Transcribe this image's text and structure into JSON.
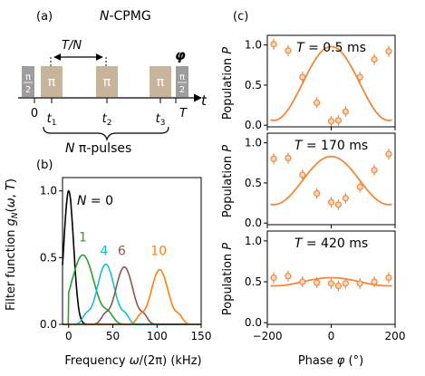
{
  "panel_a": {
    "panel_label": "(a)",
    "title_italic": "N",
    "title_rest": "-CPMG",
    "spacing_label": "T/N",
    "phi_label": "φ",
    "time_axis_label": "t",
    "pulse_symbol": "π",
    "half_pi_top": "π",
    "half_pi_bottom": "2",
    "time_ticks": [
      "0",
      "t1",
      "t2",
      "t3",
      "T"
    ],
    "pulse_caption_italic": "N",
    "pulse_caption_rest": " π-pulses",
    "colors": {
      "pulse_box": "#c8b49a",
      "half_pi_box": "#9d9d9d"
    }
  },
  "panel_b": {
    "panel_label": "(b)",
    "ylabel": "Filter function g_N(ω, T)",
    "xlabel": "Frequency ω/(2π) (kHz)",
    "n0_label": "N = 0"
  },
  "panel_c": {
    "panel_label": "(c)",
    "ylabel": "Population P",
    "xlabel": "Phase φ (°)"
  },
  "chart_data": [
    {
      "type": "line",
      "panel": "b",
      "xlabel": "Frequency ω/(2π) (kHz)",
      "ylabel": "Filter function g_N(ω, T)",
      "xlim": [
        -7,
        150
      ],
      "ylim": [
        0,
        1.1
      ],
      "xticks": [
        0,
        50,
        100,
        150
      ],
      "yticks": [
        0.0,
        0.5,
        1.0
      ],
      "series": [
        {
          "name": "0",
          "color": "#000000",
          "peak_khz": 0,
          "peak_height": 1.0
        },
        {
          "name": "1",
          "color": "#2ca02c",
          "peak_khz": 16,
          "peak_height": 0.52
        },
        {
          "name": "4",
          "color": "#17becf",
          "peak_khz": 42,
          "peak_height": 0.45
        },
        {
          "name": "6",
          "color": "#8c564b",
          "peak_khz": 63,
          "peak_height": 0.43
        },
        {
          "name": "10",
          "color": "#ff7f0e",
          "peak_khz": 103,
          "peak_height": 0.41
        }
      ]
    },
    {
      "type": "scatter",
      "panel": "c",
      "title": "T = 0.5 ms",
      "xlabel": "Phase φ (°)",
      "ylabel": "Population P",
      "xlim": [
        -200,
        200
      ],
      "ylim": [
        -0.02,
        1.12
      ],
      "yticks": [
        0.0,
        0.5,
        1.0
      ],
      "color": "#f0883e",
      "x": [
        -180,
        -135,
        -90,
        -45,
        0,
        22.5,
        45,
        90,
        135,
        180
      ],
      "y": [
        1.01,
        0.93,
        0.6,
        0.28,
        0.05,
        0.06,
        0.17,
        0.6,
        0.82,
        0.92
      ],
      "fit": {
        "mean": 0.52,
        "amplitude": 0.46
      }
    },
    {
      "type": "scatter",
      "panel": "c",
      "title": "T = 170 ms",
      "xlabel": "Phase φ (°)",
      "ylabel": "Population P",
      "xlim": [
        -200,
        200
      ],
      "ylim": [
        -0.02,
        1.12
      ],
      "yticks": [
        0.0,
        0.5,
        1.0
      ],
      "color": "#f0883e",
      "x": [
        -180,
        -135,
        -90,
        -45,
        0,
        22.5,
        45,
        90,
        135,
        180
      ],
      "y": [
        0.8,
        0.81,
        0.6,
        0.37,
        0.26,
        0.23,
        0.31,
        0.45,
        0.66,
        0.86
      ],
      "fit": {
        "mean": 0.53,
        "amplitude": 0.3
      }
    },
    {
      "type": "scatter",
      "panel": "c",
      "title": "T = 420 ms",
      "xlabel": "Phase φ (°)",
      "ylabel": "Population P",
      "xlim": [
        -200,
        200
      ],
      "ylim": [
        -0.02,
        1.12
      ],
      "yticks": [
        0.0,
        0.5,
        1.0
      ],
      "xticks": [
        -200,
        0,
        200
      ],
      "color": "#f0883e",
      "x": [
        -180,
        -135,
        -90,
        -45,
        0,
        22.5,
        45,
        90,
        135,
        180
      ],
      "y": [
        0.55,
        0.57,
        0.5,
        0.49,
        0.48,
        0.45,
        0.48,
        0.48,
        0.5,
        0.55
      ],
      "fit": {
        "mean": 0.5,
        "amplitude": 0.05
      }
    }
  ]
}
